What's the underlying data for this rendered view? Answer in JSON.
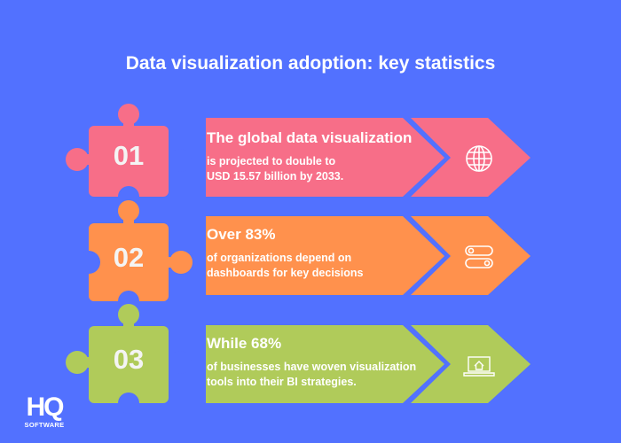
{
  "title": "Data visualization adoption: key statistics",
  "colors": {
    "background": "#5271ff",
    "pink": "#f76e88",
    "orange": "#ff914d",
    "green": "#b0cb5a"
  },
  "items": [
    {
      "number": "01",
      "heading": "The global data visualization",
      "body_line1": "is projected to double to",
      "body_line2": "USD 15.57 billion by 2033.",
      "icon": "globe-icon"
    },
    {
      "number": "02",
      "heading": "Over 83%",
      "body_line1": "of organizations depend on",
      "body_line2": "dashboards for key decisions",
      "icon": "toggle-switches-icon"
    },
    {
      "number": "03",
      "heading": "While 68%",
      "body_line1": "of businesses have woven visualization",
      "body_line2": "tools into their BI strategies.",
      "icon": "laptop-home-icon"
    }
  ],
  "logo": {
    "mark": "HQ",
    "text": "SOFTWARE"
  }
}
